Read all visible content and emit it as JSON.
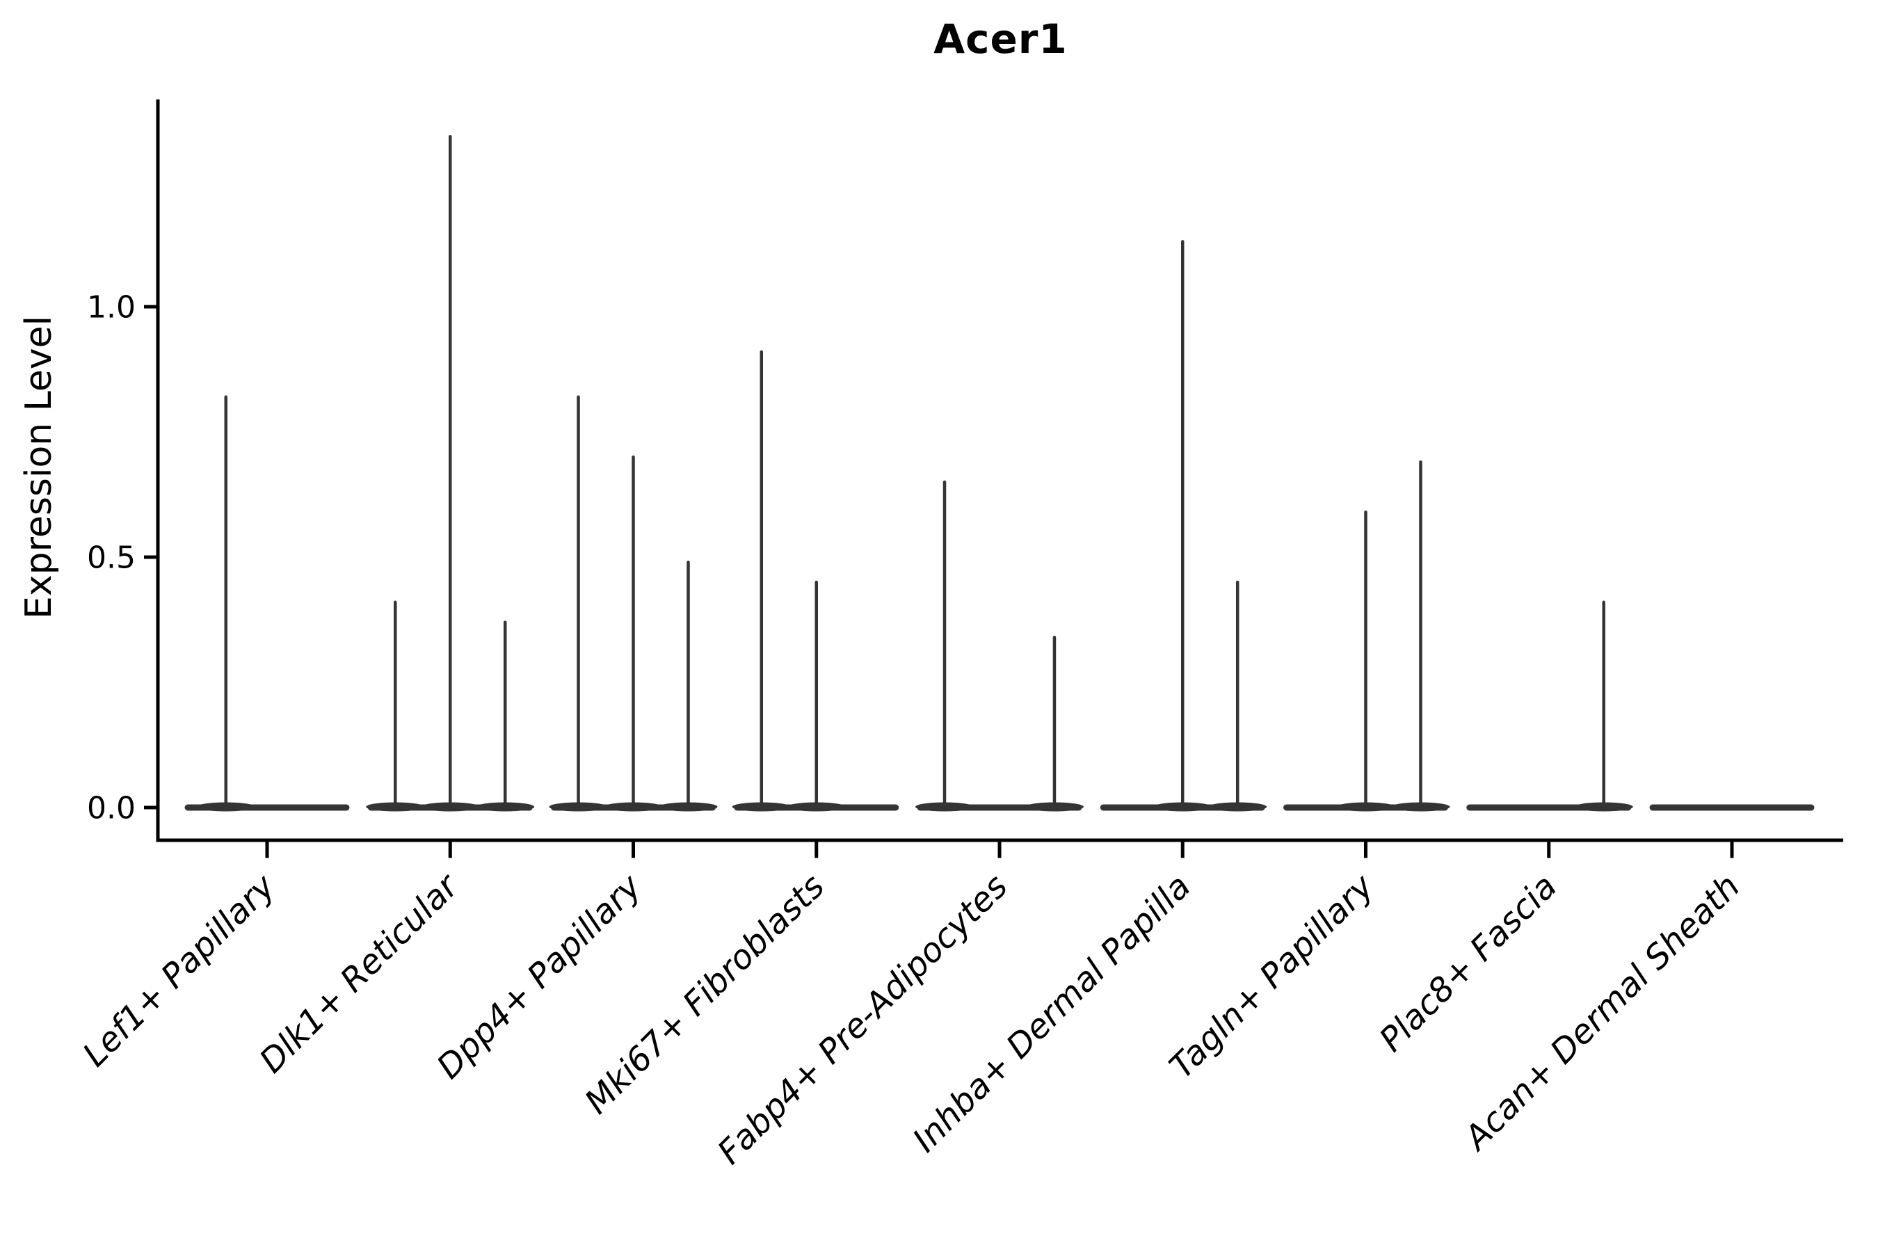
{
  "chart_data": {
    "type": "violin",
    "title": "Acer1",
    "ylabel": "Expression Level",
    "xlabel": "",
    "legend_position": "none",
    "grid": false,
    "ylim": [
      -0.065,
      1.414
    ],
    "yticks": [
      {
        "label": "0.0",
        "value": 0.0
      },
      {
        "label": "0.5",
        "value": 0.5
      },
      {
        "label": "1.0",
        "value": 1.0
      }
    ],
    "violin_color": "#343434",
    "axis_color": "#000000",
    "base_half_width_units": 0.45,
    "categories": [
      {
        "label": "Lef1+ Papillary",
        "spikes": [
          {
            "offset": -0.225,
            "max": 0.82
          }
        ]
      },
      {
        "label": "Dlk1+ Reticular",
        "spikes": [
          {
            "offset": -0.3,
            "max": 0.41
          },
          {
            "offset": 0.0,
            "max": 1.34
          },
          {
            "offset": 0.3,
            "max": 0.37
          }
        ]
      },
      {
        "label": "Dpp4+ Papillary",
        "spikes": [
          {
            "offset": -0.3,
            "max": 0.82
          },
          {
            "offset": 0.0,
            "max": 0.7
          },
          {
            "offset": 0.3,
            "max": 0.49
          }
        ]
      },
      {
        "label": "Mki67+ Fibroblasts",
        "spikes": [
          {
            "offset": -0.3,
            "max": 0.91
          },
          {
            "offset": 0.0,
            "max": 0.45
          }
        ]
      },
      {
        "label": "Fabp4+ Pre-Adipocytes",
        "spikes": [
          {
            "offset": -0.3,
            "max": 0.65
          },
          {
            "offset": 0.3,
            "max": 0.34
          }
        ]
      },
      {
        "label": "Inhba+ Dermal Papilla",
        "spikes": [
          {
            "offset": 0.0,
            "max": 1.13
          },
          {
            "offset": 0.3,
            "max": 0.45
          }
        ]
      },
      {
        "label": "Tagln+ Papillary",
        "spikes": [
          {
            "offset": 0.0,
            "max": 0.59
          },
          {
            "offset": 0.3,
            "max": 0.69
          }
        ]
      },
      {
        "label": "Plac8+ Fascia",
        "spikes": [
          {
            "offset": 0.3,
            "max": 0.41
          }
        ]
      },
      {
        "label": "Acan+ Dermal Sheath",
        "spikes": []
      }
    ]
  }
}
